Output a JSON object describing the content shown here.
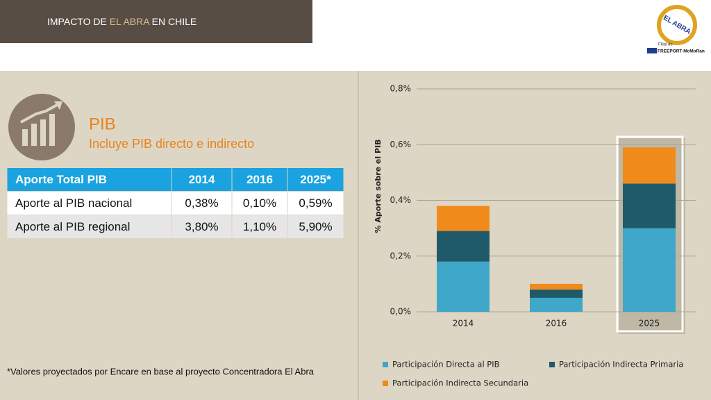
{
  "header": {
    "title_parts": [
      "IMPACTO DE ",
      "EL ABRA",
      " EN CHILE"
    ]
  },
  "logo": {
    "name": "EL ABRA",
    "subtitle": "Filial de",
    "parent": "FREEPORT-McMoRan"
  },
  "section": {
    "title": "PIB",
    "subtitle": "Incluye PIB directo e indirecto"
  },
  "table": {
    "header": [
      "Aporte Total PIB",
      "2014",
      "2016",
      "2025*"
    ],
    "rows": [
      [
        "Aporte al PIB nacional",
        "0,38%",
        "0,10%",
        "0,59%"
      ],
      [
        "Aporte al PIB regional",
        "3,80%",
        "1,10%",
        "5,90%"
      ]
    ]
  },
  "footnote": "*Valores proyectados por Encare en base al proyecto Concentradora El Abra",
  "chart_data": {
    "type": "stacked_bar",
    "y_label": "% Aporte sobre el PIB",
    "categories": [
      "2014",
      "2016",
      "2025"
    ],
    "series": [
      {
        "name": "Participación Directa al PIB",
        "color": "#3fa7c9",
        "values": [
          0.18,
          0.05,
          0.3
        ]
      },
      {
        "name": "Participación Indirecta Primaria",
        "color": "#1f5a6b",
        "values": [
          0.11,
          0.03,
          0.16
        ]
      },
      {
        "name": "Participación Indirecta Secundaria",
        "color": "#ef8a1b",
        "values": [
          0.09,
          0.02,
          0.13
        ]
      }
    ],
    "ylim": [
      0,
      0.8
    ],
    "yticks": [
      {
        "value": 0,
        "label": "0,0%"
      },
      {
        "value": 0.2,
        "label": "0,2%"
      },
      {
        "value": 0.4,
        "label": "0,4%"
      },
      {
        "value": 0.6,
        "label": "0,6%"
      },
      {
        "value": 0.8,
        "label": "0,8%"
      }
    ],
    "grid": true
  }
}
